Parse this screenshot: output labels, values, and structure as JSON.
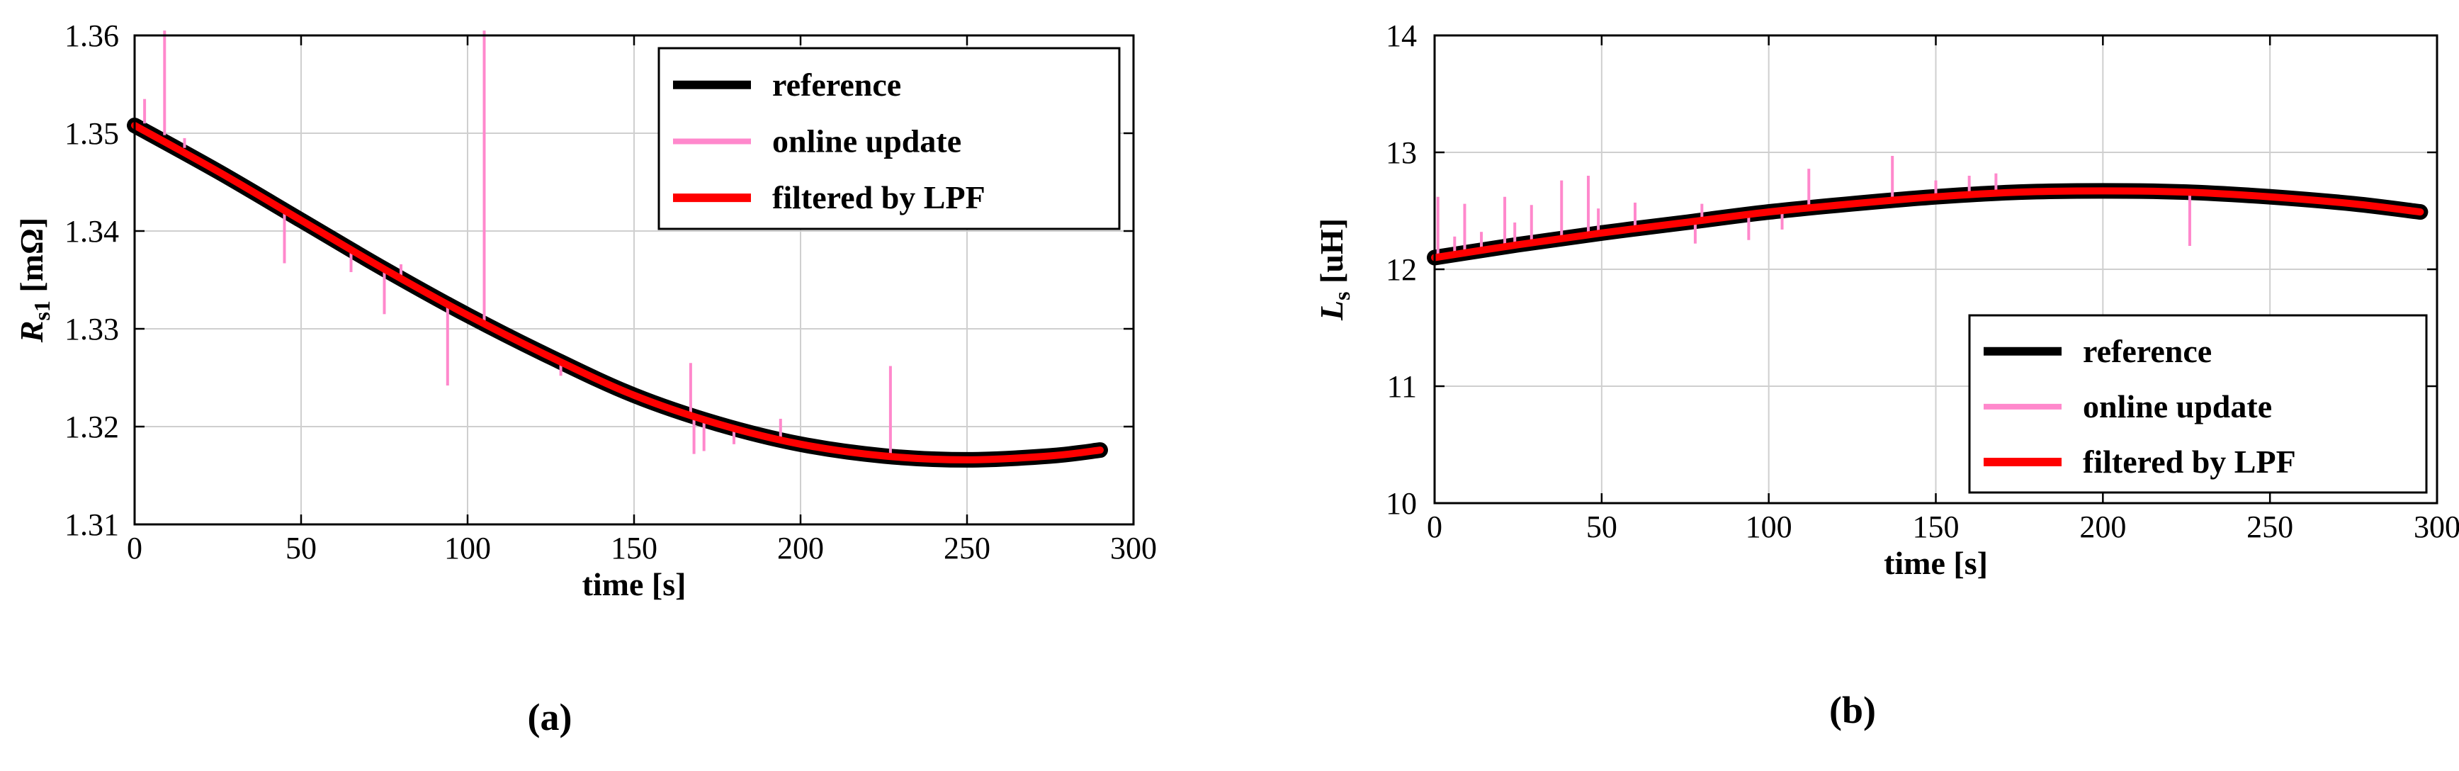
{
  "chart_data": [
    {
      "panel_label": "(a)",
      "type": "line",
      "xlabel": "time [s]",
      "ylabel_main": "R",
      "ylabel_sub": "s1",
      "ylabel_unit": " [mΩ]",
      "xlim": [
        0,
        300
      ],
      "ylim": [
        1.31,
        1.36
      ],
      "xticks": [
        0,
        50,
        100,
        150,
        200,
        250,
        300
      ],
      "xtick_labels": [
        "0",
        "50",
        "100",
        "150",
        "200",
        "250",
        "300"
      ],
      "yticks": [
        1.31,
        1.32,
        1.33,
        1.34,
        1.35,
        1.36
      ],
      "ytick_labels": [
        "1.31",
        "1.32",
        "1.33",
        "1.34",
        "1.35",
        "1.36"
      ],
      "grid": true,
      "legend_position": "top-right",
      "series": [
        {
          "name": "reference",
          "color": "#000000",
          "x": [
            0,
            25,
            50,
            75,
            100,
            125,
            150,
            175,
            200,
            225,
            250,
            275,
            290
          ],
          "y": [
            1.3508,
            1.3461,
            1.3411,
            1.3361,
            1.3314,
            1.3271,
            1.3232,
            1.3203,
            1.3182,
            1.317,
            1.3166,
            1.317,
            1.3176
          ]
        },
        {
          "name": "online update",
          "color": "#ff88cc",
          "spikes": [
            {
              "x": 3,
              "y0": 1.351,
              "y1": 1.3535
            },
            {
              "x": 9,
              "y0": 1.3498,
              "y1": 1.3605
            },
            {
              "x": 15,
              "y0": 1.3485,
              "y1": 1.3495
            },
            {
              "x": 45,
              "y0": 1.3424,
              "y1": 1.3367
            },
            {
              "x": 65,
              "y0": 1.3383,
              "y1": 1.3358
            },
            {
              "x": 75,
              "y0": 1.3361,
              "y1": 1.3315
            },
            {
              "x": 80,
              "y0": 1.3351,
              "y1": 1.3366
            },
            {
              "x": 94,
              "y0": 1.3324,
              "y1": 1.3242
            },
            {
              "x": 105,
              "y0": 1.3305,
              "y1": 1.3605
            },
            {
              "x": 128,
              "y0": 1.3266,
              "y1": 1.3252
            },
            {
              "x": 167,
              "y0": 1.3212,
              "y1": 1.3265
            },
            {
              "x": 168,
              "y0": 1.3211,
              "y1": 1.3172
            },
            {
              "x": 171,
              "y0": 1.3207,
              "y1": 1.3175
            },
            {
              "x": 180,
              "y0": 1.3196,
              "y1": 1.3182
            },
            {
              "x": 194,
              "y0": 1.3187,
              "y1": 1.3208
            },
            {
              "x": 227,
              "y0": 1.317,
              "y1": 1.3262
            }
          ]
        },
        {
          "name": "filtered by LPF",
          "color": "#ff0000",
          "x": [
            0,
            25,
            50,
            75,
            100,
            125,
            150,
            175,
            200,
            225,
            250,
            275,
            290
          ],
          "y": [
            1.3508,
            1.3461,
            1.3411,
            1.3361,
            1.3314,
            1.3271,
            1.3232,
            1.3203,
            1.3182,
            1.317,
            1.3166,
            1.317,
            1.3176
          ]
        }
      ]
    },
    {
      "panel_label": "(b)",
      "type": "line",
      "xlabel": "time [s]",
      "ylabel_main": "L",
      "ylabel_sub": "s",
      "ylabel_unit": " [uH]",
      "xlim": [
        0,
        300
      ],
      "ylim": [
        10,
        14
      ],
      "xticks": [
        0,
        50,
        100,
        150,
        200,
        250,
        300
      ],
      "xtick_labels": [
        "0",
        "50",
        "100",
        "150",
        "200",
        "250",
        "300"
      ],
      "yticks": [
        10,
        11,
        12,
        13,
        14
      ],
      "ytick_labels": [
        "10",
        "11",
        "12",
        "13",
        "14"
      ],
      "grid": true,
      "legend_position": "bottom-right",
      "series": [
        {
          "name": "reference",
          "color": "#000000",
          "x": [
            0,
            25,
            50,
            75,
            100,
            125,
            150,
            175,
            200,
            225,
            250,
            275,
            295
          ],
          "y": [
            12.1,
            12.21,
            12.31,
            12.4,
            12.49,
            12.56,
            12.62,
            12.66,
            12.67,
            12.66,
            12.62,
            12.56,
            12.49
          ]
        },
        {
          "name": "online update",
          "color": "#ff88cc",
          "spikes": [
            {
              "x": 1,
              "y0": 12.1,
              "y1": 12.62
            },
            {
              "x": 6,
              "y0": 12.12,
              "y1": 12.28
            },
            {
              "x": 9,
              "y0": 12.13,
              "y1": 12.56
            },
            {
              "x": 14,
              "y0": 12.15,
              "y1": 12.32
            },
            {
              "x": 21,
              "y0": 12.18,
              "y1": 12.62
            },
            {
              "x": 24,
              "y0": 12.19,
              "y1": 12.4
            },
            {
              "x": 29,
              "y0": 12.21,
              "y1": 12.55
            },
            {
              "x": 38,
              "y0": 12.25,
              "y1": 12.76
            },
            {
              "x": 46,
              "y0": 12.28,
              "y1": 12.8
            },
            {
              "x": 49,
              "y0": 12.29,
              "y1": 12.52
            },
            {
              "x": 60,
              "y0": 12.34,
              "y1": 12.57
            },
            {
              "x": 78,
              "y0": 12.41,
              "y1": 12.22
            },
            {
              "x": 80,
              "y0": 12.42,
              "y1": 12.56
            },
            {
              "x": 94,
              "y0": 12.47,
              "y1": 12.25
            },
            {
              "x": 104,
              "y0": 12.5,
              "y1": 12.34
            },
            {
              "x": 112,
              "y0": 12.53,
              "y1": 12.86
            },
            {
              "x": 137,
              "y0": 12.59,
              "y1": 12.97
            },
            {
              "x": 150,
              "y0": 12.62,
              "y1": 12.76
            },
            {
              "x": 160,
              "y0": 12.64,
              "y1": 12.8
            },
            {
              "x": 168,
              "y0": 12.65,
              "y1": 12.82
            },
            {
              "x": 226,
              "y0": 12.66,
              "y1": 12.2
            }
          ]
        },
        {
          "name": "filtered by LPF",
          "color": "#ff0000",
          "x": [
            0,
            25,
            50,
            75,
            100,
            125,
            150,
            175,
            200,
            225,
            250,
            275,
            295
          ],
          "y": [
            12.1,
            12.21,
            12.31,
            12.4,
            12.49,
            12.56,
            12.62,
            12.66,
            12.67,
            12.66,
            12.62,
            12.56,
            12.49
          ]
        }
      ]
    }
  ]
}
